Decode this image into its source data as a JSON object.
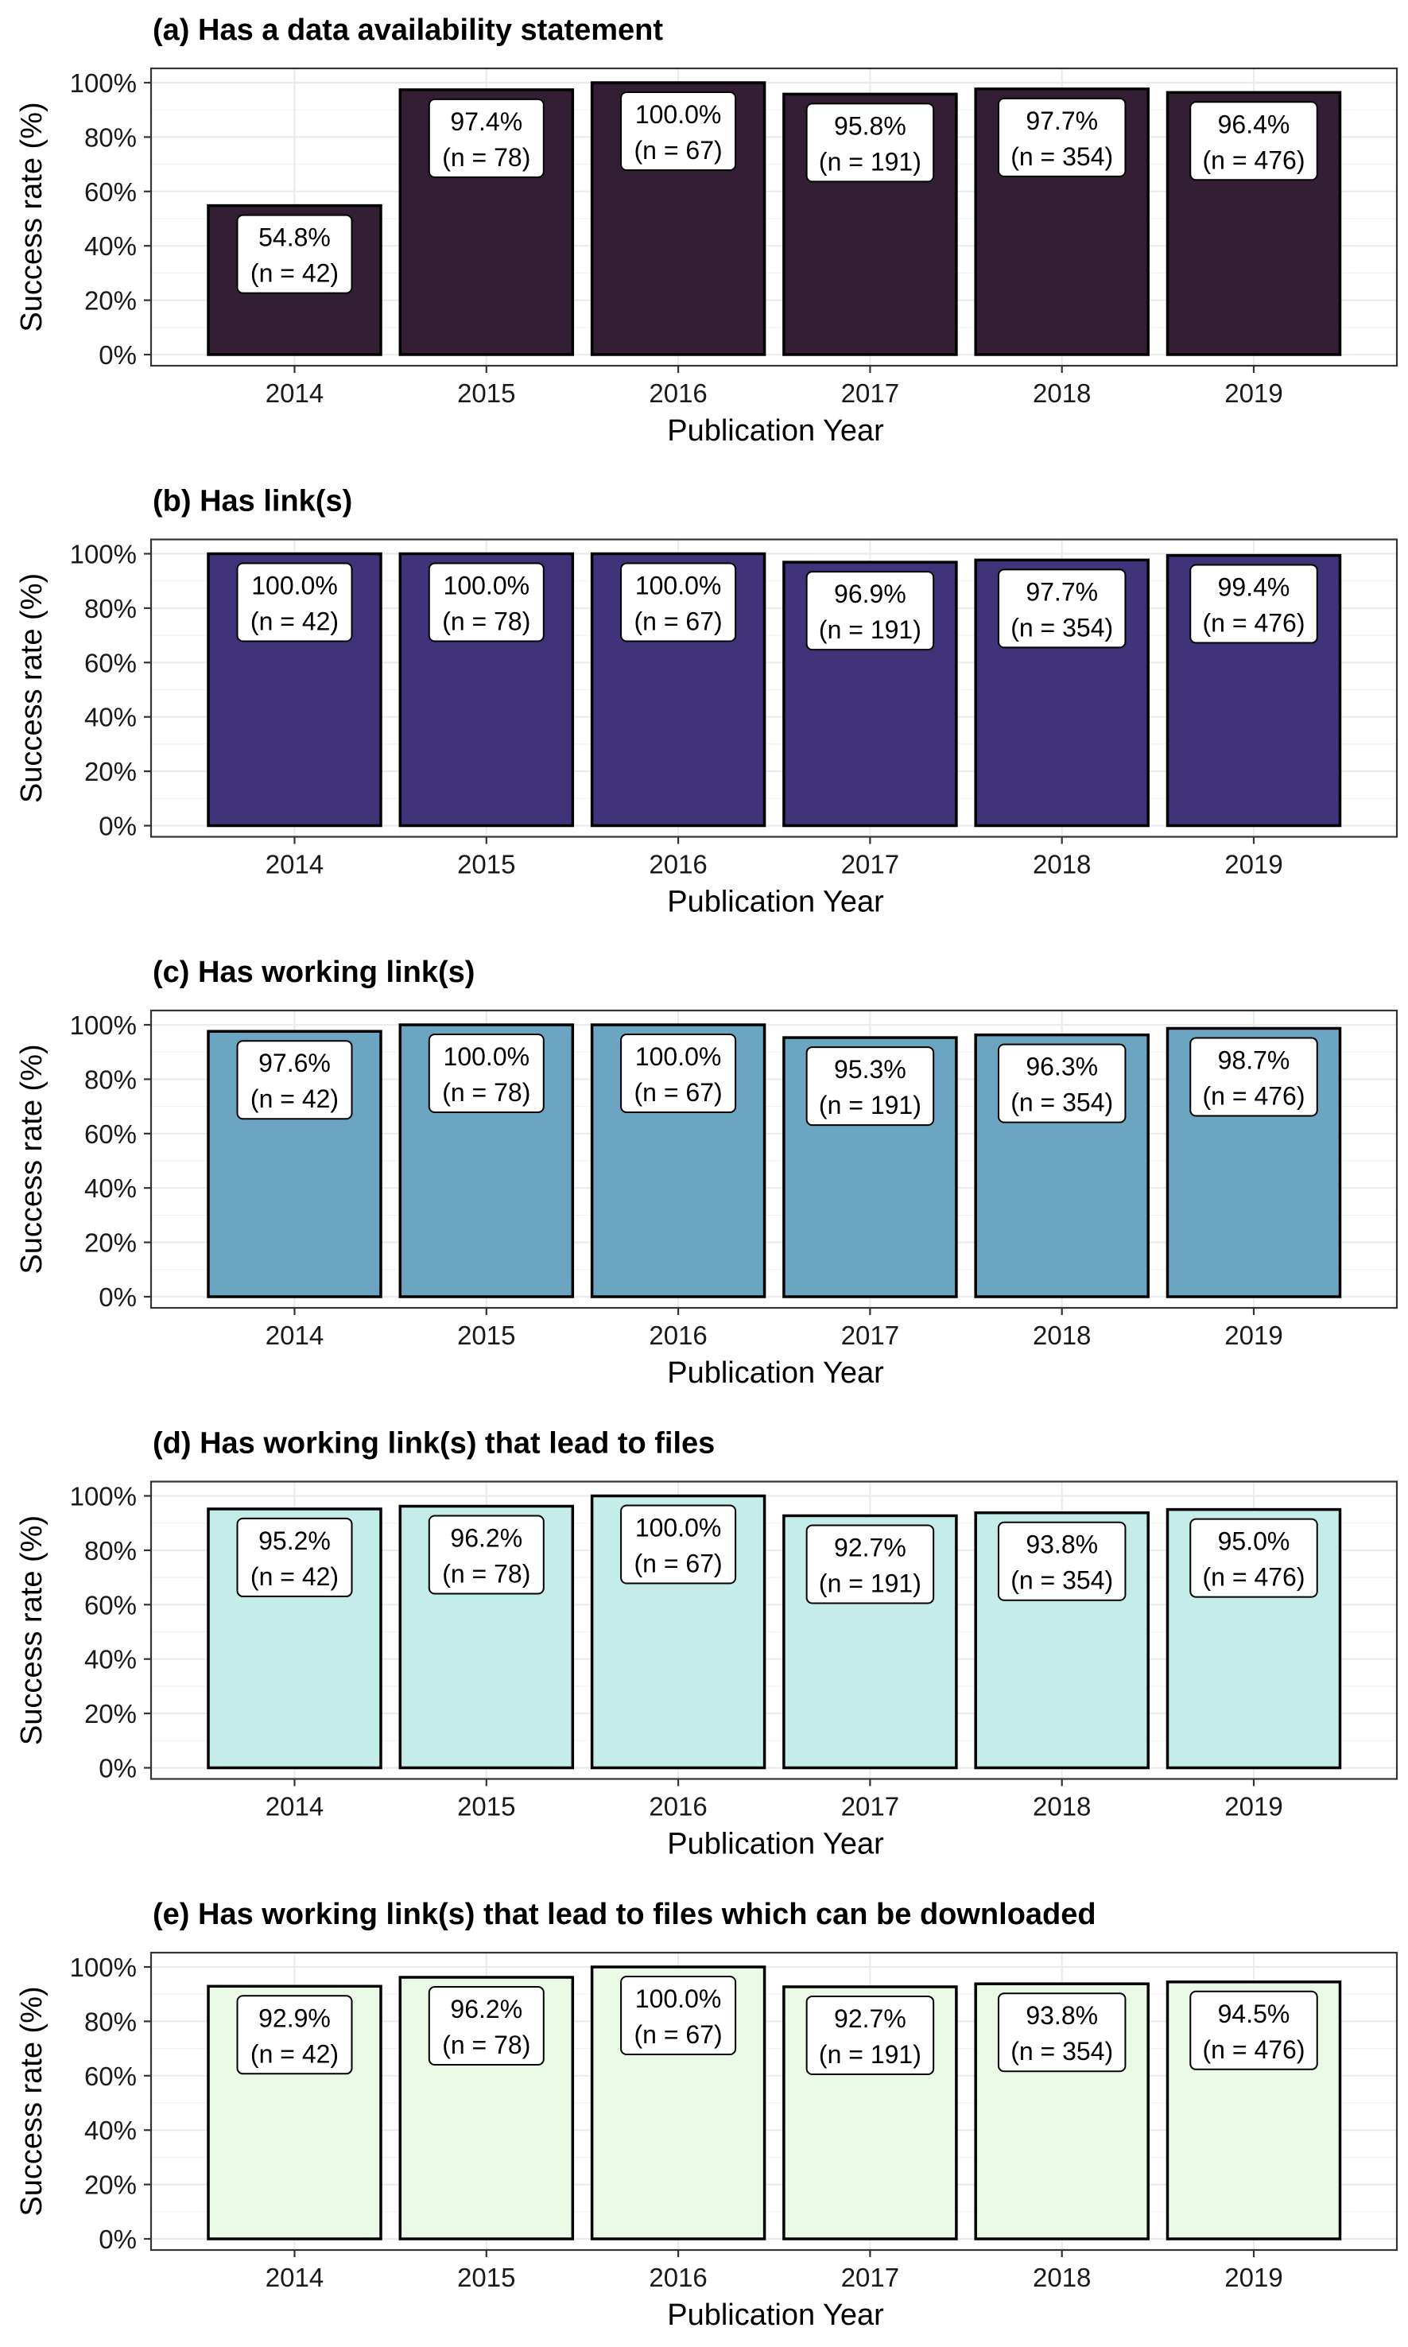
{
  "chart_data": [
    {
      "type": "bar",
      "title": "(a) Has a data availability statement",
      "xlabel": "Publication Year",
      "ylabel": "Success rate (%)",
      "ylim": [
        0,
        100
      ],
      "yticks": [
        "0%",
        "20%",
        "40%",
        "60%",
        "80%",
        "100%"
      ],
      "grid": true,
      "bar_color": "#331f33",
      "categories": [
        "2014",
        "2015",
        "2016",
        "2017",
        "2018",
        "2019"
      ],
      "values": [
        54.8,
        97.4,
        100.0,
        95.8,
        97.7,
        96.4
      ],
      "value_labels": [
        "54.8%",
        "97.4%",
        "100.0%",
        "95.8%",
        "97.7%",
        "96.4%"
      ],
      "n_labels": [
        "(n = 42)",
        "(n = 78)",
        "(n = 67)",
        "(n = 191)",
        "(n = 354)",
        "(n = 476)"
      ]
    },
    {
      "type": "bar",
      "title": "(b) Has link(s)",
      "xlabel": "Publication Year",
      "ylabel": "Success rate (%)",
      "ylim": [
        0,
        100
      ],
      "yticks": [
        "0%",
        "20%",
        "40%",
        "60%",
        "80%",
        "100%"
      ],
      "grid": true,
      "bar_color": "#40337a",
      "categories": [
        "2014",
        "2015",
        "2016",
        "2017",
        "2018",
        "2019"
      ],
      "values": [
        100.0,
        100.0,
        100.0,
        96.9,
        97.7,
        99.4
      ],
      "value_labels": [
        "100.0%",
        "100.0%",
        "100.0%",
        "96.9%",
        "97.7%",
        "99.4%"
      ],
      "n_labels": [
        "(n = 42)",
        "(n = 78)",
        "(n = 67)",
        "(n = 191)",
        "(n = 354)",
        "(n = 476)"
      ]
    },
    {
      "type": "bar",
      "title": "(c) Has working link(s)",
      "xlabel": "Publication Year",
      "ylabel": "Success rate (%)",
      "ylim": [
        0,
        100
      ],
      "yticks": [
        "0%",
        "20%",
        "40%",
        "60%",
        "80%",
        "100%"
      ],
      "grid": true,
      "bar_color": "#6ca5c2",
      "categories": [
        "2014",
        "2015",
        "2016",
        "2017",
        "2018",
        "2019"
      ],
      "values": [
        97.6,
        100.0,
        100.0,
        95.3,
        96.3,
        98.7
      ],
      "value_labels": [
        "97.6%",
        "100.0%",
        "100.0%",
        "95.3%",
        "96.3%",
        "98.7%"
      ],
      "n_labels": [
        "(n = 42)",
        "(n = 78)",
        "(n = 67)",
        "(n = 191)",
        "(n = 354)",
        "(n = 476)"
      ]
    },
    {
      "type": "bar",
      "title": "(d) Has working link(s) that lead to files",
      "xlabel": "Publication Year",
      "ylabel": "Success rate (%)",
      "ylim": [
        0,
        100
      ],
      "yticks": [
        "0%",
        "20%",
        "40%",
        "60%",
        "80%",
        "100%"
      ],
      "grid": true,
      "bar_color": "#c4edea",
      "categories": [
        "2014",
        "2015",
        "2016",
        "2017",
        "2018",
        "2019"
      ],
      "values": [
        95.2,
        96.2,
        100.0,
        92.7,
        93.8,
        95.0
      ],
      "value_labels": [
        "95.2%",
        "96.2%",
        "100.0%",
        "92.7%",
        "93.8%",
        "95.0%"
      ],
      "n_labels": [
        "(n = 42)",
        "(n = 78)",
        "(n = 67)",
        "(n = 191)",
        "(n = 354)",
        "(n = 476)"
      ]
    },
    {
      "type": "bar",
      "title": "(e) Has working link(s) that lead to files which can be downloaded",
      "xlabel": "Publication Year",
      "ylabel": "Success rate (%)",
      "ylim": [
        0,
        100
      ],
      "yticks": [
        "0%",
        "20%",
        "40%",
        "60%",
        "80%",
        "100%"
      ],
      "grid": true,
      "bar_color": "#ebfae6",
      "categories": [
        "2014",
        "2015",
        "2016",
        "2017",
        "2018",
        "2019"
      ],
      "values": [
        92.9,
        96.2,
        100.0,
        92.7,
        93.8,
        94.5
      ],
      "value_labels": [
        "92.9%",
        "96.2%",
        "100.0%",
        "92.7%",
        "93.8%",
        "94.5%"
      ],
      "n_labels": [
        "(n = 42)",
        "(n = 78)",
        "(n = 67)",
        "(n = 191)",
        "(n = 354)",
        "(n = 476)"
      ]
    }
  ]
}
